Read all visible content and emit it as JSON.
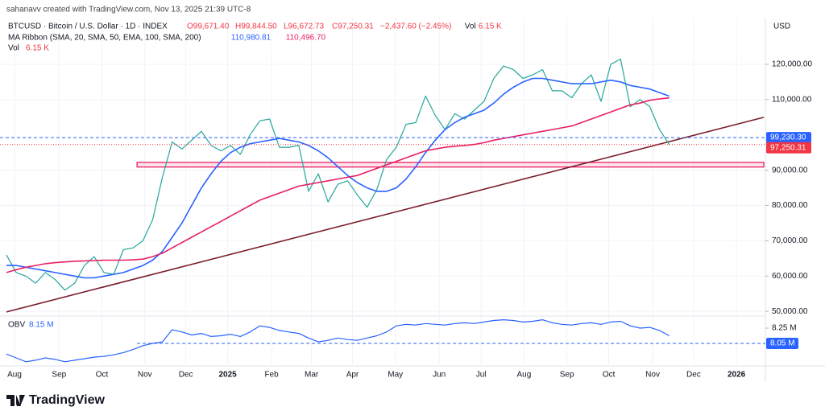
{
  "header": {
    "credit": "sahanavv created with TradingView.com, Nov 13, 2025 21:39 UTC-8",
    "currency": "USD",
    "brand": "TradingView"
  },
  "chart_data": [
    {
      "type": "line",
      "pane": "main",
      "title": "BTCUSD · Bitcoin / U.S. Dollar · 1D · INDEX",
      "ohlc": [
        "O99,671.40",
        "H99,844.50",
        "L96,672.73",
        "C97,250.31",
        "−2,437.60 (−2.45%)"
      ],
      "volume_legend": [
        "Vol",
        "6.15 K"
      ],
      "indicator": "MA Ribbon (SMA, 20, SMA, 50, EMA, 100, SMA, 200)",
      "indicator_values": [
        {
          "value": 110980.81,
          "label": "110,980.81",
          "color": "#2962ff"
        },
        {
          "value": 110496.7,
          "label": "110,496.70",
          "color": "#e91e63"
        }
      ],
      "vol_label": [
        "Vol",
        "6.15 K"
      ],
      "xlim": [
        0,
        77.7
      ],
      "xticks": [
        {
          "value": 0.83,
          "label": "Aug"
        },
        {
          "value": 5.4,
          "label": "Sep"
        },
        {
          "value": 9.8,
          "label": "Oct"
        },
        {
          "value": 14.2,
          "label": "Nov"
        },
        {
          "value": 18.4,
          "label": "Dec"
        },
        {
          "value": 22.7,
          "label": "2025"
        },
        {
          "value": 27.2,
          "label": "Feb"
        },
        {
          "value": 31.3,
          "label": "Mar"
        },
        {
          "value": 35.5,
          "label": "Apr"
        },
        {
          "value": 39.9,
          "label": "May"
        },
        {
          "value": 44.4,
          "label": "Jun"
        },
        {
          "value": 48.7,
          "label": "Jul"
        },
        {
          "value": 53.1,
          "label": "Aug"
        },
        {
          "value": 57.5,
          "label": "Sep"
        },
        {
          "value": 61.8,
          "label": "Oct"
        },
        {
          "value": 66.3,
          "label": "Nov"
        },
        {
          "value": 70.5,
          "label": "Dec"
        },
        {
          "value": 74.9,
          "label": "2026"
        }
      ],
      "ylim": [
        48900,
        129100
      ],
      "yticks": [
        {
          "value": 50000,
          "label": "50,000.00"
        },
        {
          "value": 60000,
          "label": "60,000.00"
        },
        {
          "value": 70000,
          "label": "70,000.00"
        },
        {
          "value": 80000,
          "label": "80,000.00"
        },
        {
          "value": 90000,
          "label": "90,000.00"
        },
        {
          "value": 110000,
          "label": "110,000.00"
        },
        {
          "value": 120000,
          "label": "120,000.00"
        }
      ],
      "grid": true,
      "series": [
        {
          "name": "BTCUSD",
          "color": "#26a69a",
          "values": [
            66000,
            61000,
            60000,
            58000,
            61000,
            59000,
            56000,
            58000,
            63000,
            65500,
            61000,
            60500,
            67500,
            68000,
            70000,
            76000,
            88000,
            98000,
            96000,
            98500,
            101000,
            97000,
            95500,
            97000,
            94500,
            100000,
            104000,
            104500,
            96500,
            96500,
            97000,
            84000,
            89000,
            81000,
            86000,
            87000,
            83000,
            79500,
            84500,
            93000,
            96500,
            103000,
            103500,
            111000,
            105500,
            101500,
            106000,
            104500,
            107000,
            109500,
            116000,
            119500,
            118500,
            116000,
            117000,
            118500,
            112500,
            112500,
            110500,
            114500,
            117000,
            109500,
            120000,
            121500,
            108000,
            110000,
            108000,
            101500,
            97250.31
          ]
        },
        {
          "name": "SMA 50",
          "color": "#2962ff",
          "values": [
            63000,
            63000,
            62500,
            62000,
            61500,
            61000,
            60500,
            60000,
            59500,
            59500,
            60000,
            60500,
            61000,
            62000,
            63000,
            64500,
            67000,
            71000,
            75000,
            80000,
            85000,
            89000,
            92500,
            95000,
            96500,
            97500,
            98000,
            98500,
            99000,
            98500,
            98000,
            97000,
            95500,
            93500,
            91000,
            88500,
            86500,
            85000,
            84000,
            84000,
            85000,
            87500,
            91000,
            95000,
            98500,
            101500,
            103500,
            105000,
            106000,
            107000,
            109000,
            111500,
            113500,
            115000,
            116000,
            116000,
            115500,
            115000,
            114500,
            114500,
            114500,
            115000,
            115500,
            115000,
            114000,
            113500,
            113000,
            112000,
            110980.81
          ]
        },
        {
          "name": "SMA 200",
          "color": "#e91e63",
          "values": [
            61000,
            61800,
            62500,
            63000,
            63500,
            63800,
            64000,
            64200,
            64300,
            64400,
            64500,
            64500,
            64500,
            64600,
            64800,
            65500,
            66500,
            68000,
            69500,
            71000,
            72500,
            74000,
            75500,
            77000,
            78500,
            80000,
            81500,
            82500,
            83500,
            84500,
            85500,
            86000,
            86500,
            87000,
            87500,
            88000,
            88500,
            89500,
            90500,
            91500,
            92500,
            93500,
            94500,
            95500,
            96000,
            96500,
            96800,
            97000,
            97300,
            97800,
            98500,
            99000,
            99500,
            100000,
            100500,
            101000,
            101500,
            102000,
            102500,
            103500,
            104500,
            105500,
            106500,
            107500,
            108500,
            109000,
            109800,
            110200,
            110496.7
          ]
        }
      ],
      "trendline": {
        "x": [
          0,
          77.7
        ],
        "y": [
          49840,
          104970
        ],
        "color": "#7b1d2a"
      },
      "zone": {
        "x": [
          13.4,
          77.7
        ],
        "y": [
          90900,
          92200
        ],
        "color": "#e91e63"
      },
      "price_lines": [
        {
          "value": 99230.3,
          "label": "99,230.30",
          "color": "#2962ff"
        },
        {
          "value": 97250.31,
          "label": "97,250.31",
          "color": "#f23645"
        }
      ]
    },
    {
      "type": "line",
      "pane": "obv",
      "title": "OBV",
      "title_value": "8.15 M",
      "xlim": [
        0,
        77.7
      ],
      "ylim": [
        7.776,
        8.387
      ],
      "yticks": [
        {
          "value": 8.25,
          "label": "8.25 M"
        },
        {
          "value": 8.05,
          "label": "8.05 M"
        }
      ],
      "series": [
        {
          "name": "OBV",
          "color": "#2962ff",
          "values": [
            7.91,
            7.86,
            7.81,
            7.83,
            7.86,
            7.84,
            7.81,
            7.83,
            7.85,
            7.87,
            7.88,
            7.9,
            7.93,
            7.97,
            8.02,
            8.05,
            8.07,
            8.23,
            8.2,
            8.16,
            8.18,
            8.14,
            8.15,
            8.17,
            8.14,
            8.2,
            8.28,
            8.26,
            8.22,
            8.2,
            8.18,
            8.12,
            8.07,
            8.09,
            8.12,
            8.1,
            8.09,
            8.12,
            8.15,
            8.2,
            8.28,
            8.3,
            8.29,
            8.31,
            8.3,
            8.29,
            8.31,
            8.32,
            8.31,
            8.33,
            8.35,
            8.36,
            8.35,
            8.33,
            8.34,
            8.36,
            8.32,
            8.3,
            8.29,
            8.31,
            8.32,
            8.3,
            8.33,
            8.34,
            8.28,
            8.25,
            8.26,
            8.22,
            8.15
          ]
        }
      ]
    }
  ]
}
